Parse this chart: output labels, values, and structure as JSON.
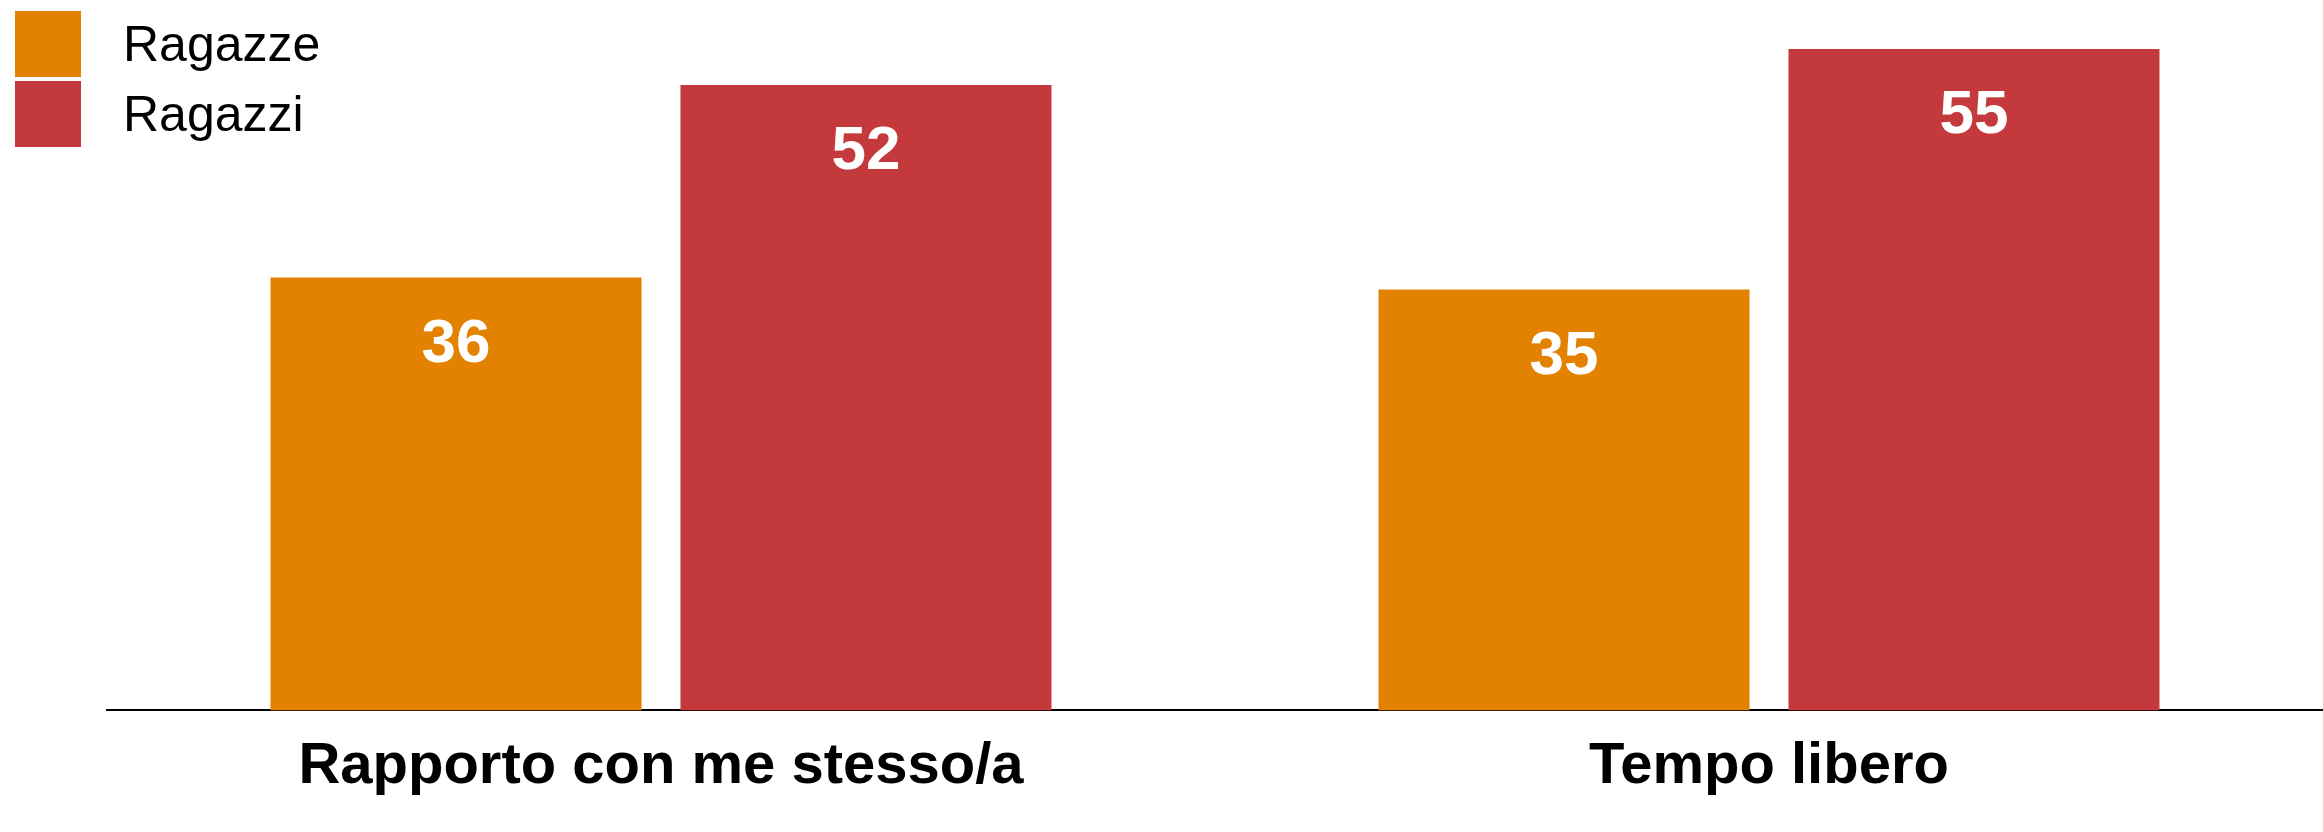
{
  "chart_data": {
    "type": "bar",
    "categories": [
      "Rapporto con me stesso/a",
      "Tempo libero"
    ],
    "series": [
      {
        "name": "Ragazze",
        "color": "#e38200",
        "values": [
          36,
          35
        ]
      },
      {
        "name": "Ragazzi",
        "color": "#c4393b",
        "values": [
          52,
          55
        ]
      }
    ],
    "data_labels": true,
    "legend": "top left",
    "grid": false
  }
}
